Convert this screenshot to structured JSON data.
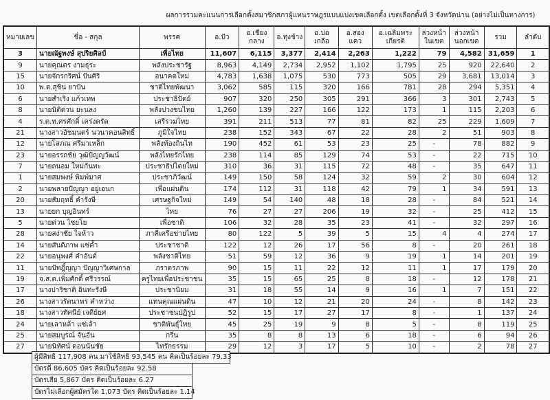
{
  "title": "ผลการรวมคะแนนการเลือกตั้งสมาชิกสภาผู้แทนราษฎรแบบแบ่งเขตเลือกตั้ง เขตเลือกตั้งที่ 3 จังหวัดน่าน (อย่างไม่เป็นทางการ)",
  "headers": [
    "หมายเลข",
    "ชื่อ - สกุล",
    "พรรค",
    "อ.ปัว",
    "อ.เชียง\nกลาง",
    "อ.ทุ่งช้าง",
    "อ.บ่อเกลือ",
    "อ.สองแคว",
    "อ.เฉลิมพระ\nเกียรติ",
    "ล่วงหน้า\nในเขต",
    "ล่วงหน้า\nนอกเขต",
    "รวม",
    "ลำดับ"
  ],
  "rows": [
    [
      "3",
      "นายณัฐพงษ์ สุปริยศิลป์",
      "เพื่อไทย",
      "11,607",
      "6,115",
      "3,377",
      "2,414",
      "2,263",
      "1,222",
      "79",
      "4,582",
      "31,659",
      "1"
    ],
    [
      "9",
      "นายคุณตร งามธุระ",
      "พลังประชารัฐ",
      "8,963",
      "4,149",
      "2,734",
      "2,952",
      "1,102",
      "1,795",
      "25",
      "920",
      "22,640",
      "2"
    ],
    [
      "15",
      "นายจักรกริศน์ ปันศิริ",
      "อนาคตใหม่",
      "4,783",
      "1,638",
      "1,075",
      "530",
      "773",
      "505",
      "29",
      "3,681",
      "13,014",
      "3"
    ],
    [
      "10",
      "พ.ต.สุชิน ยาปัน",
      "ชาติไทยพัฒนา",
      "3,062",
      "585",
      "115",
      "320",
      "166",
      "781",
      "28",
      "294",
      "5,351",
      "4"
    ],
    [
      "6",
      "นายสำเริง แก้วเทพ",
      "ประชาธิปัตย์",
      "907",
      "320",
      "250",
      "305",
      "291",
      "366",
      "3",
      "301",
      "2,743",
      "5"
    ],
    [
      "8",
      "นายนิติด่วน ยะนลง",
      "พลังปวงชนไทย",
      "1,260",
      "139",
      "227",
      "166",
      "122",
      "173",
      "1",
      "115",
      "2,203",
      "6"
    ],
    [
      "4",
      "ร.ต.ท.ศรศักดิ์ เคร่งครัด",
      "เสรีรวมไทย",
      "391",
      "211",
      "513",
      "77",
      "81",
      "82",
      "25",
      "229",
      "1,609",
      "7"
    ],
    [
      "21",
      "นางสาวอัชมนตร์ นวนาคอนสิทธิ์",
      "ภูมิใจไทย",
      "238",
      "152",
      "343",
      "67",
      "22",
      "28",
      "2",
      "51",
      "903",
      "8"
    ],
    [
      "12",
      "นายโสภณ ศรีมาเหล็ก",
      "พลังท้องถิ่นไท",
      "190",
      "452",
      "61",
      "53",
      "23",
      "25",
      "-",
      "78",
      "882",
      "9"
    ],
    [
      "23",
      "นายอรรถชัย วุฒิปัญญวัฒน์",
      "พลังไทยรักไทย",
      "238",
      "114",
      "85",
      "129",
      "74",
      "53",
      "-",
      "22",
      "715",
      "10"
    ],
    [
      "7",
      "นายถนอม ใหม่กันทะ",
      "ประชาธิปไตยใหม่",
      "310",
      "36",
      "31",
      "115",
      "72",
      "48",
      "-",
      "35",
      "647",
      "11"
    ],
    [
      "1",
      "นายสมพงษ์ พิมพ์มาศ",
      "ประชาภิวัฒน์",
      "149",
      "150",
      "58",
      "124",
      "32",
      "59",
      "2",
      "30",
      "604",
      "12"
    ],
    [
      "2",
      "นายพลายปัญญา อยู่เอนก",
      "เพื่อแผ่นดิน",
      "174",
      "112",
      "31",
      "118",
      "42",
      "79",
      "1",
      "34",
      "591",
      "13"
    ],
    [
      "20",
      "นายสัมฤทธิ์ คำรังษี",
      "เศรษฐกิจใหม่",
      "149",
      "54",
      "140",
      "48",
      "18",
      "28",
      "-",
      "84",
      "521",
      "14"
    ],
    [
      "13",
      "นายยก บุญอินทร์",
      "ไทย",
      "76",
      "27",
      "27",
      "206",
      "19",
      "32",
      "-",
      "25",
      "412",
      "15"
    ],
    [
      "5",
      "นายด่วน ไชยโย",
      "เพื่อชาติ",
      "106",
      "32",
      "28",
      "35",
      "23",
      "41",
      "-",
      "32",
      "297",
      "16"
    ],
    [
      "28",
      "นายสง่าชัย ใจห้าว",
      "ภาคีเครือข่ายไทย",
      "80",
      "122",
      "5",
      "39",
      "5",
      "15",
      "4",
      "4",
      "274",
      "17"
    ],
    [
      "14",
      "นายสันติภาพ แซ่ค้ำ",
      "ประชาชาติ",
      "122",
      "12",
      "26",
      "17",
      "56",
      "8",
      "-",
      "20",
      "261",
      "18"
    ],
    [
      "22",
      "นายอนุพงศ์ คำอันต์",
      "พลังชาติไทย",
      "51",
      "59",
      "12",
      "36",
      "9",
      "19",
      "1",
      "14",
      "201",
      "19"
    ],
    [
      "11",
      "นายปัทฎิ์ญญา ปัญญาวิเศษกาล",
      "ภราดรภาพ",
      "90",
      "15",
      "11",
      "22",
      "12",
      "11",
      "1",
      "17",
      "179",
      "20"
    ],
    [
      "19",
      "จ.ส.ต.เพิ่มศักดิ์ ศรีวรรณ์",
      "ครูไทยเพื่อประชาชน",
      "35",
      "15",
      "65",
      "25",
      "8",
      "18",
      "-",
      "12",
      "178",
      "21"
    ],
    [
      "17",
      "นางปาริชาติ อินทะรังษี",
      "ประชานิยม",
      "31",
      "18",
      "55",
      "14",
      "9",
      "16",
      "1",
      "7",
      "151",
      "22"
    ],
    [
      "26",
      "นางสาวรัตนาพร คำหว่าง",
      "แทนคุณแผ่นดิน",
      "47",
      "10",
      "12",
      "21",
      "20",
      "24",
      "-",
      "8",
      "142",
      "23"
    ],
    [
      "18",
      "นางสาวทัศนีย์ เจดีย์ยศ",
      "ประชาชนปฏิรูป",
      "52",
      "15",
      "17",
      "27",
      "17",
      "8",
      "-",
      "1",
      "137",
      "24"
    ],
    [
      "24",
      "นายเลาหล้า แซ่เล้า",
      "ชาติพันธุ์ไทย",
      "45",
      "25",
      "19",
      "9",
      "8",
      "5",
      "-",
      "8",
      "119",
      "25"
    ],
    [
      "25",
      "นายสมบูรณ์ จันอัน",
      "กรีน",
      "35",
      "8",
      "8",
      "13",
      "6",
      "18",
      "-",
      "6",
      "94",
      "26"
    ],
    [
      "27",
      "นายนิทัศน์ ดอนนันชัย",
      "ไทรักธรรม",
      "29",
      "12",
      "3",
      "17",
      "5",
      "10",
      "-",
      "2",
      "78",
      "27"
    ]
  ],
  "summary": [
    "ผู้มีสิทธิ 117,908 คน มาใช้สิทธิ 93,545 คน คิดเป็นร้อยละ 79.33",
    "บัตรดี 86,605 บัตร คิดเป็นร้อยละ 92.58",
    "บัตรเสีย 5,867 บัตร คิดเป็นร้อยละ 6.27",
    "บัตรไม่เลือกผู้สมัครใด 1,073 บัตร คิดเป็นร้อยละ 1.14"
  ]
}
